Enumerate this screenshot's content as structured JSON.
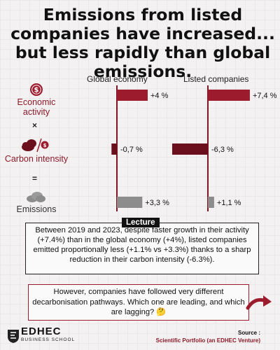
{
  "title": "Emissions from listed companies have increased... but less rapidly than global emissions.",
  "chart_data": {
    "type": "bar",
    "orientation": "horizontal",
    "panels": [
      "Global economy",
      "Listed companies"
    ],
    "categories": [
      "Economic activity",
      "Carbon intensity",
      "Emissions"
    ],
    "operators": [
      "×",
      "="
    ],
    "series": [
      {
        "name": "Global economy",
        "values": [
          4,
          -0.7,
          3.3
        ],
        "labels": [
          "+4 %",
          "-0,7 %",
          "+3,3 %"
        ]
      },
      {
        "name": "Listed companies",
        "values": [
          7.4,
          -6.3,
          1.1
        ],
        "labels": [
          "+7,4 %",
          "-6,3 %",
          "+1,1 %"
        ]
      }
    ],
    "unit": "%",
    "xlim": [
      -7,
      8
    ],
    "colors": {
      "activity": "#9c1c2e",
      "intensity": "#6b0f1c",
      "emissions": "#8c8c8c",
      "axis": "#7a1826"
    }
  },
  "lecture": {
    "tag": "Lecture",
    "text": "Between 2019 and 2023, despite faster growth in their activity (+7.4%) than in the global economy (+4%), listed companies emitted proportionally less (+1.1% vs +3.3%) thanks to a sharp reduction in their carbon intensity (-6.3%)."
  },
  "question": {
    "text": "However, companies have followed very different decarbonisation pathways. Which one are leading, and which are lagging? 🤔"
  },
  "logo": {
    "main": "EDHEC",
    "sub": "BUSINESS SCHOOL"
  },
  "source": {
    "label": "Source :",
    "value": "Scientific Portfolio (an EDHEC Venture)"
  },
  "icons": {
    "activity": "dollar-coin-icon",
    "intensity": "co2-cloud-icon",
    "emissions": "smoke-cloud-icon",
    "arrow": "curved-arrow-icon"
  }
}
